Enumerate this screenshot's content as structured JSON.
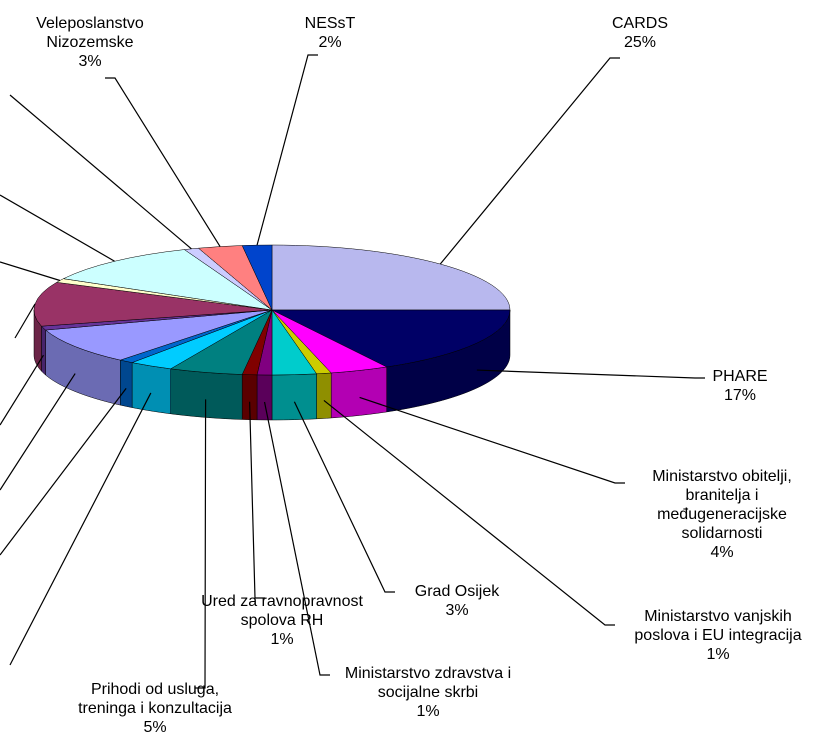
{
  "chart_data": {
    "type": "pie",
    "categories": [
      "CARDS",
      "PHARE",
      "Ministarstvo obitelji,\nbranitelja i\nmeđugeneracijske\nsolidarnosti",
      "Ministarstvo vanjskih\nposlova i EU integracija",
      "Grad Osijek",
      "Ministarstvo zdravstva i\nsocijalne skrbi",
      "Ured za ravnopravnost\nspolova RH",
      "Prihodi od usluga,\ntreninga i konzultacija",
      null,
      null,
      null,
      null,
      null,
      null,
      null,
      null,
      "Veleposlanstvo\nNizozemske",
      "NESsT"
    ],
    "values": [
      25,
      17,
      4,
      1,
      3,
      1,
      1,
      5,
      3,
      1,
      9,
      1,
      11,
      1,
      11,
      1,
      3,
      2
    ],
    "value_labels": [
      "25%",
      "17%",
      "4%",
      "1%",
      "3%",
      "1%",
      "1%",
      "5%",
      null,
      null,
      null,
      null,
      null,
      null,
      null,
      null,
      "3%",
      "2%"
    ],
    "colors": [
      "#b8b8ee",
      "#000066",
      "#ff00ff",
      "#cccc00",
      "#00cccc",
      "#800080",
      "#800000",
      "#008080",
      "#00ccff",
      "#0066cc",
      "#9999ff",
      "#663399",
      "#993366",
      "#ffffcc",
      "#ccffff",
      "#ccccff",
      "#ff8080",
      "#0044cc"
    ]
  }
}
